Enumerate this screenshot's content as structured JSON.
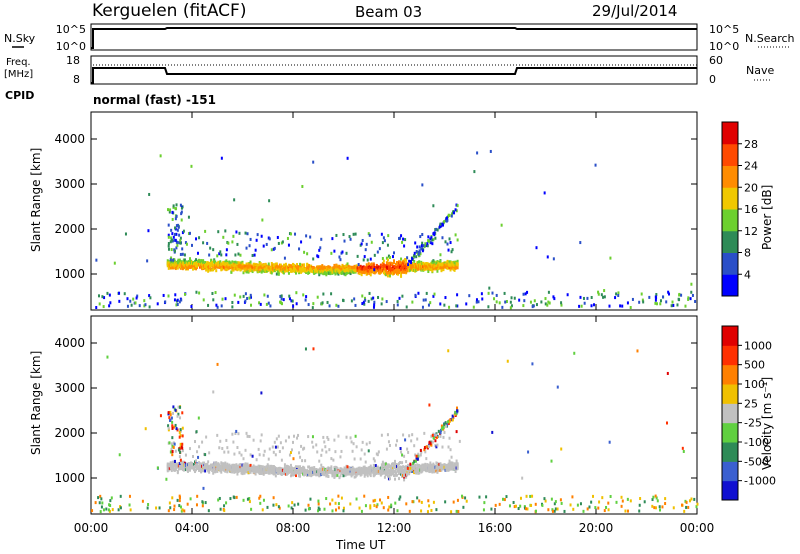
{
  "header": {
    "radar": "Kerguelen (fitACF)",
    "beam": "Beam 03",
    "date": "29/Jul/2014"
  },
  "nsky_panel": {
    "left_label": "N.Sky",
    "right_label": "N.Search",
    "left_ticks": [
      "10^5",
      "10^0"
    ],
    "right_ticks": [
      "10^5",
      "10^0"
    ]
  },
  "freq_panel": {
    "left_label_1": "Freq.",
    "left_label_2": "[MHz]",
    "right_label": "Nave",
    "left_ticks": [
      "18",
      "8"
    ],
    "right_ticks": [
      "60",
      "0"
    ],
    "cpid_label": "CPID",
    "cpid_text": "normal (fast) -151"
  },
  "chart_data": [
    {
      "type": "heatmap",
      "title": "",
      "ylabel": "Slant Range [km]",
      "xlabel": "Time UT",
      "x_ticks": [
        "00:00",
        "04:00",
        "08:00",
        "12:00",
        "16:00",
        "20:00",
        "00:00"
      ],
      "y_ticks": [
        "1000",
        "2000",
        "3000",
        "4000"
      ],
      "ylim": [
        200,
        4600
      ],
      "xlim_hours": [
        0,
        24
      ],
      "colorbar": {
        "label": "Power [dB]",
        "ticks": [
          "4",
          "8",
          "12",
          "16",
          "20",
          "24",
          "28"
        ],
        "colors": [
          "#0000ff",
          "#2a4fc8",
          "#2e8b57",
          "#6ccf2f",
          "#f0c800",
          "#ff8c00",
          "#ff4a00",
          "#e00000"
        ]
      },
      "features": [
        {
          "name": "main echo band",
          "t_start": 3.0,
          "t_end": 14.5,
          "range_center_km": 1150,
          "typical_power_db": 16
        }
      ]
    },
    {
      "type": "heatmap",
      "title": "",
      "ylabel": "Slant Range [km]",
      "xlabel": "Time UT",
      "x_ticks": [
        "00:00",
        "04:00",
        "08:00",
        "12:00",
        "16:00",
        "20:00",
        "00:00"
      ],
      "y_ticks": [
        "1000",
        "2000",
        "3000",
        "4000"
      ],
      "ylim": [
        200,
        4600
      ],
      "xlim_hours": [
        0,
        24
      ],
      "colorbar": {
        "label": "Velocity [m s⁻¹]",
        "ticks": [
          "1000",
          "500",
          "100",
          "25",
          "-25",
          "-100",
          "-500",
          "-1000"
        ],
        "colors": [
          "#1010d0",
          "#3a5fcf",
          "#2e8b57",
          "#60d040",
          "#c0c0c0",
          "#f0c000",
          "#ff8000",
          "#ff3000",
          "#e00000"
        ]
      },
      "features": [
        {
          "name": "ground scatter band",
          "t_start": 3.0,
          "t_end": 14.5,
          "range_center_km": 1200,
          "typical_velocity": 0
        }
      ]
    }
  ]
}
